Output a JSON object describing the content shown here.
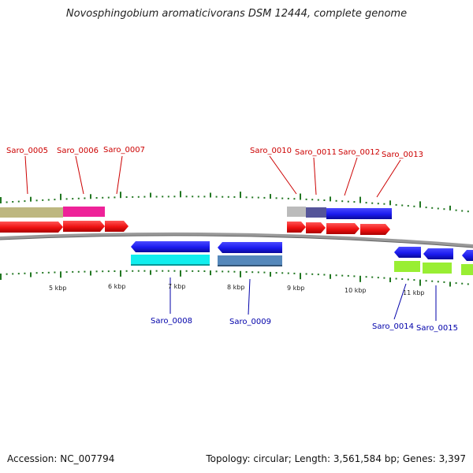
{
  "title": "Novosphingobium aromaticivorans DSM 12444, complete genome",
  "footer": {
    "accession": "Accession: NC_007794",
    "summary": "Topology: circular; Length: 3,561,584 bp; Genes: 3,397"
  },
  "scale_labels": [
    "5 kbp",
    "6 kbp",
    "7 kbp",
    "8 kbp",
    "9 kbp",
    "10 kbp",
    "11 kbp"
  ],
  "genes": [
    {
      "label": "Saro_0005",
      "strand": "forward"
    },
    {
      "label": "Saro_0006",
      "strand": "forward"
    },
    {
      "label": "Saro_0007",
      "strand": "forward"
    },
    {
      "label": "Saro_0008",
      "strand": "reverse"
    },
    {
      "label": "Saro_0009",
      "strand": "reverse"
    },
    {
      "label": "Saro_0010",
      "strand": "forward"
    },
    {
      "label": "Saro_0011",
      "strand": "forward"
    },
    {
      "label": "Saro_0012",
      "strand": "forward"
    },
    {
      "label": "Saro_0013",
      "strand": "forward"
    },
    {
      "label": "Saro_0014",
      "strand": "reverse"
    },
    {
      "label": "Saro_0015",
      "strand": "reverse"
    }
  ],
  "colors": {
    "forward_gene": "#ee1111",
    "reverse_gene": "#1a1aee",
    "forward_label": "#cc0000",
    "reverse_label": "#0000aa",
    "backbone": "#888888",
    "tick": "#227722"
  }
}
